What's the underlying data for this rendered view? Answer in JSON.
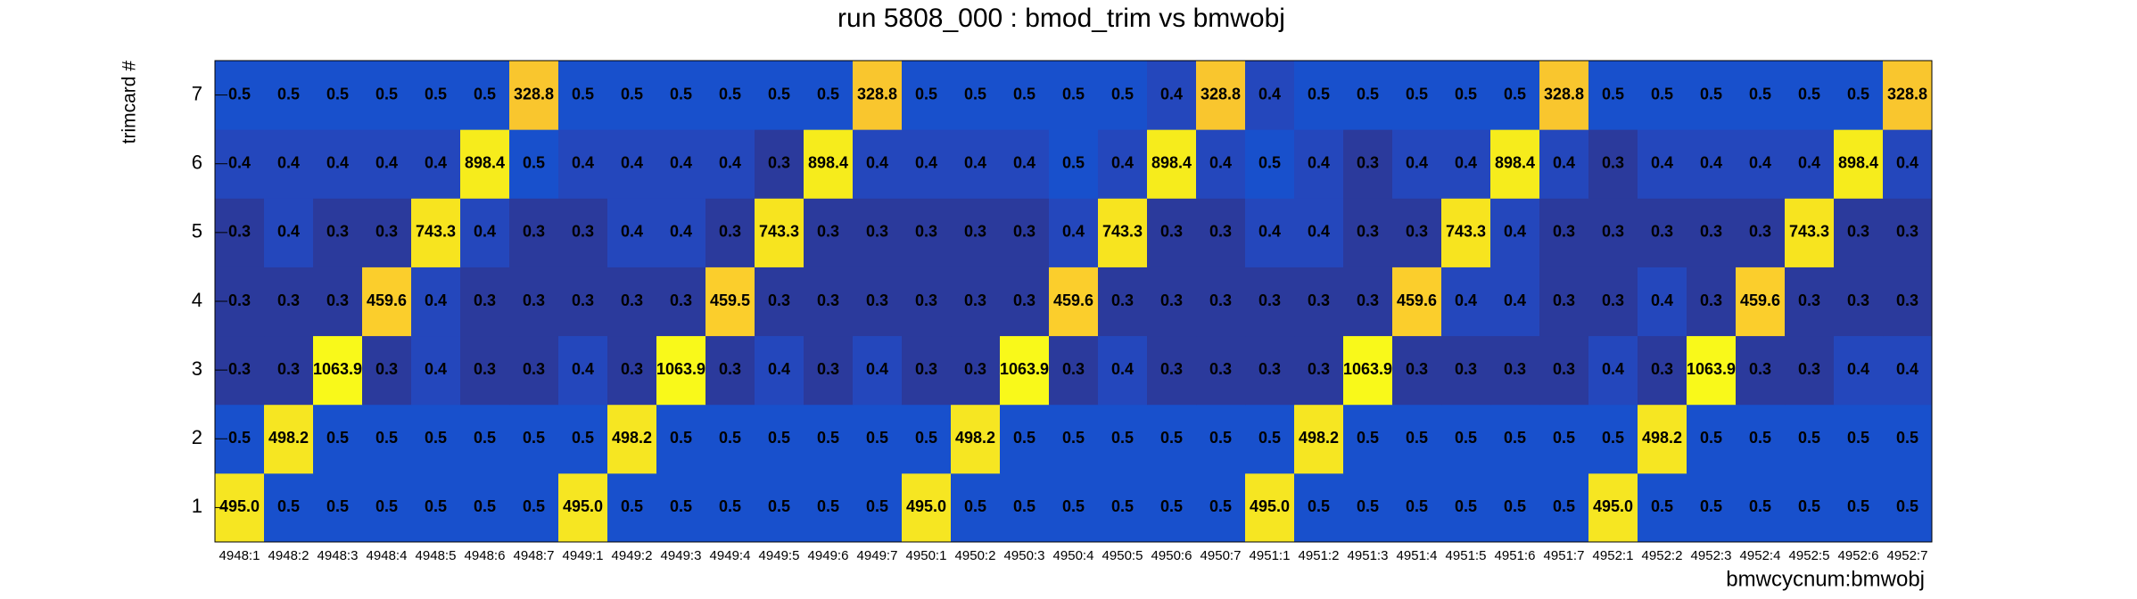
{
  "chart_data": {
    "type": "heatmap",
    "title": "run 5808_000 : bmod_trim vs bmwobj",
    "x_label": "bmwcycnum:bmwobj",
    "y_label": "trimcard #",
    "categories": [
      "4948:1",
      "4948:2",
      "4948:3",
      "4948:4",
      "4948:5",
      "4948:6",
      "4948:7",
      "4949:1",
      "4949:2",
      "4949:3",
      "4949:4",
      "4949:5",
      "4949:6",
      "4949:7",
      "4950:1",
      "4950:2",
      "4950:3",
      "4950:4",
      "4950:5",
      "4950:6",
      "4950:7",
      "4951:1",
      "4951:2",
      "4951:3",
      "4951:4",
      "4951:5",
      "4951:6",
      "4951:7",
      "4952:1",
      "4952:2",
      "4952:3",
      "4952:4",
      "4952:5",
      "4952:6",
      "4952:7"
    ],
    "ylim": [
      0.5,
      7.5
    ],
    "yticks": [
      1,
      2,
      3,
      4,
      5,
      6,
      7
    ],
    "z": [
      [
        495,
        0.5,
        0.5,
        0.5,
        0.5,
        0.5,
        0.5,
        495,
        0.5,
        0.5,
        0.5,
        0.5,
        0.5,
        0.5,
        495,
        0.5,
        0.5,
        0.5,
        0.5,
        0.5,
        0.5,
        495,
        0.5,
        0.5,
        0.5,
        0.5,
        0.5,
        0.5,
        495,
        0.5,
        0.5,
        0.5,
        0.5,
        0.5,
        0.5
      ],
      [
        0.5,
        498.2,
        0.5,
        0.5,
        0.5,
        0.5,
        0.5,
        0.5,
        498.2,
        0.5,
        0.5,
        0.5,
        0.5,
        0.5,
        0.5,
        498.2,
        0.5,
        0.5,
        0.5,
        0.5,
        0.5,
        0.5,
        498.2,
        0.5,
        0.5,
        0.5,
        0.5,
        0.5,
        0.5,
        498.2,
        0.5,
        0.5,
        0.5,
        0.5,
        0.5
      ],
      [
        0.3,
        0.3,
        1063.9,
        0.3,
        0.4,
        0.3,
        0.3,
        0.4,
        0.3,
        1063.9,
        0.3,
        0.4,
        0.3,
        0.4,
        0.3,
        0.3,
        1063.9,
        0.3,
        0.4,
        0.3,
        0.3,
        0.3,
        0.3,
        1063.9,
        0.3,
        0.3,
        0.3,
        0.3,
        0.4,
        0.3,
        1063.9,
        0.3,
        0.3,
        0.4,
        0.4
      ],
      [
        0.3,
        0.3,
        0.3,
        459.6,
        0.4,
        0.3,
        0.3,
        0.3,
        0.3,
        0.3,
        459.5,
        0.3,
        0.3,
        0.3,
        0.3,
        0.3,
        0.3,
        459.6,
        0.3,
        0.3,
        0.3,
        0.3,
        0.3,
        0.3,
        459.6,
        0.4,
        0.4,
        0.3,
        0.3,
        0.4,
        0.3,
        459.6,
        0.3,
        0.3,
        0.3
      ],
      [
        0.3,
        0.4,
        0.3,
        0.3,
        743.3,
        0.4,
        0.3,
        0.3,
        0.4,
        0.4,
        0.3,
        743.3,
        0.3,
        0.3,
        0.3,
        0.3,
        0.3,
        0.4,
        743.3,
        0.3,
        0.3,
        0.4,
        0.4,
        0.3,
        0.3,
        743.3,
        0.4,
        0.3,
        0.3,
        0.3,
        0.3,
        0.3,
        743.3,
        0.3,
        0.3
      ],
      [
        0.4,
        0.4,
        0.4,
        0.4,
        0.4,
        898.4,
        0.5,
        0.4,
        0.4,
        0.4,
        0.4,
        0.3,
        898.4,
        0.4,
        0.4,
        0.4,
        0.4,
        0.5,
        0.4,
        898.4,
        0.4,
        0.5,
        0.4,
        0.3,
        0.4,
        0.4,
        898.4,
        0.4,
        0.3,
        0.4,
        0.4,
        0.4,
        0.4,
        898.4,
        0.4
      ],
      [
        0.5,
        0.5,
        0.5,
        0.5,
        0.5,
        0.5,
        328.8,
        0.5,
        0.5,
        0.5,
        0.5,
        0.5,
        0.5,
        328.8,
        0.5,
        0.5,
        0.5,
        0.5,
        0.5,
        0.4,
        328.8,
        0.4,
        0.5,
        0.5,
        0.5,
        0.5,
        0.5,
        328.8,
        0.5,
        0.5,
        0.5,
        0.5,
        0.5,
        0.5,
        328.8
      ]
    ],
    "value_labels": [
      [
        "495.0",
        "0.5",
        "0.5",
        "0.5",
        "0.5",
        "0.5",
        "0.5",
        "495.0",
        "0.5",
        "0.5",
        "0.5",
        "0.5",
        "0.5",
        "0.5",
        "495.0",
        "0.5",
        "0.5",
        "0.5",
        "0.5",
        "0.5",
        "0.5",
        "495.0",
        "0.5",
        "0.5",
        "0.5",
        "0.5",
        "0.5",
        "0.5",
        "495.0",
        "0.5",
        "0.5",
        "0.5",
        "0.5",
        "0.5",
        "0.5"
      ],
      [
        "0.5",
        "498.2",
        "0.5",
        "0.5",
        "0.5",
        "0.5",
        "0.5",
        "0.5",
        "498.2",
        "0.5",
        "0.5",
        "0.5",
        "0.5",
        "0.5",
        "0.5",
        "498.2",
        "0.5",
        "0.5",
        "0.5",
        "0.5",
        "0.5",
        "0.5",
        "498.2",
        "0.5",
        "0.5",
        "0.5",
        "0.5",
        "0.5",
        "0.5",
        "498.2",
        "0.5",
        "0.5",
        "0.5",
        "0.5",
        "0.5"
      ],
      [
        "0.3",
        "0.3",
        "1063.9",
        "0.3",
        "0.4",
        "0.3",
        "0.3",
        "0.4",
        "0.3",
        "1063.9",
        "0.3",
        "0.4",
        "0.3",
        "0.4",
        "0.3",
        "0.3",
        "1063.9",
        "0.3",
        "0.4",
        "0.3",
        "0.3",
        "0.3",
        "0.3",
        "1063.9",
        "0.3",
        "0.3",
        "0.3",
        "0.3",
        "0.4",
        "0.3",
        "1063.9",
        "0.3",
        "0.3",
        "0.4",
        "0.4"
      ],
      [
        "0.3",
        "0.3",
        "0.3",
        "459.6",
        "0.4",
        "0.3",
        "0.3",
        "0.3",
        "0.3",
        "0.3",
        "459.5",
        "0.3",
        "0.3",
        "0.3",
        "0.3",
        "0.3",
        "0.3",
        "459.6",
        "0.3",
        "0.3",
        "0.3",
        "0.3",
        "0.3",
        "0.3",
        "459.6",
        "0.4",
        "0.4",
        "0.3",
        "0.3",
        "0.4",
        "0.3",
        "459.6",
        "0.3",
        "0.3",
        "0.3"
      ],
      [
        "0.3",
        "0.4",
        "0.3",
        "0.3",
        "743.3",
        "0.4",
        "0.3",
        "0.3",
        "0.4",
        "0.4",
        "0.3",
        "743.3",
        "0.3",
        "0.3",
        "0.3",
        "0.3",
        "0.3",
        "0.4",
        "743.3",
        "0.3",
        "0.3",
        "0.4",
        "0.4",
        "0.3",
        "0.3",
        "743.3",
        "0.4",
        "0.3",
        "0.3",
        "0.3",
        "0.3",
        "0.3",
        "743.3",
        "0.3",
        "0.3"
      ],
      [
        "0.4",
        "0.4",
        "0.4",
        "0.4",
        "0.4",
        "898.4",
        "0.5",
        "0.4",
        "0.4",
        "0.4",
        "0.4",
        "0.3",
        "898.4",
        "0.4",
        "0.4",
        "0.4",
        "0.4",
        "0.5",
        "0.4",
        "898.4",
        "0.4",
        "0.5",
        "0.4",
        "0.3",
        "0.4",
        "0.4",
        "898.4",
        "0.4",
        "0.3",
        "0.4",
        "0.4",
        "0.4",
        "0.4",
        "898.4",
        "0.4"
      ],
      [
        "0.5",
        "0.5",
        "0.5",
        "0.5",
        "0.5",
        "0.5",
        "328.8",
        "0.5",
        "0.5",
        "0.5",
        "0.5",
        "0.5",
        "0.5",
        "328.8",
        "0.5",
        "0.5",
        "0.5",
        "0.5",
        "0.5",
        "0.4",
        "328.8",
        "0.4",
        "0.5",
        "0.5",
        "0.5",
        "0.5",
        "0.5",
        "328.8",
        "0.5",
        "0.5",
        "0.5",
        "0.5",
        "0.5",
        "0.5",
        "328.8"
      ]
    ],
    "color_stops": [
      [
        0.3,
        "#2b3a9c"
      ],
      [
        0.4,
        "#2447bc"
      ],
      [
        0.5,
        "#1850cc"
      ],
      [
        328.8,
        "#f9c62e"
      ],
      [
        459.6,
        "#fbce2c"
      ],
      [
        495,
        "#f6e622"
      ],
      [
        743.3,
        "#f7e41f"
      ],
      [
        898.4,
        "#f6ec1c"
      ],
      [
        1063.9,
        "#f9f91a"
      ]
    ]
  }
}
